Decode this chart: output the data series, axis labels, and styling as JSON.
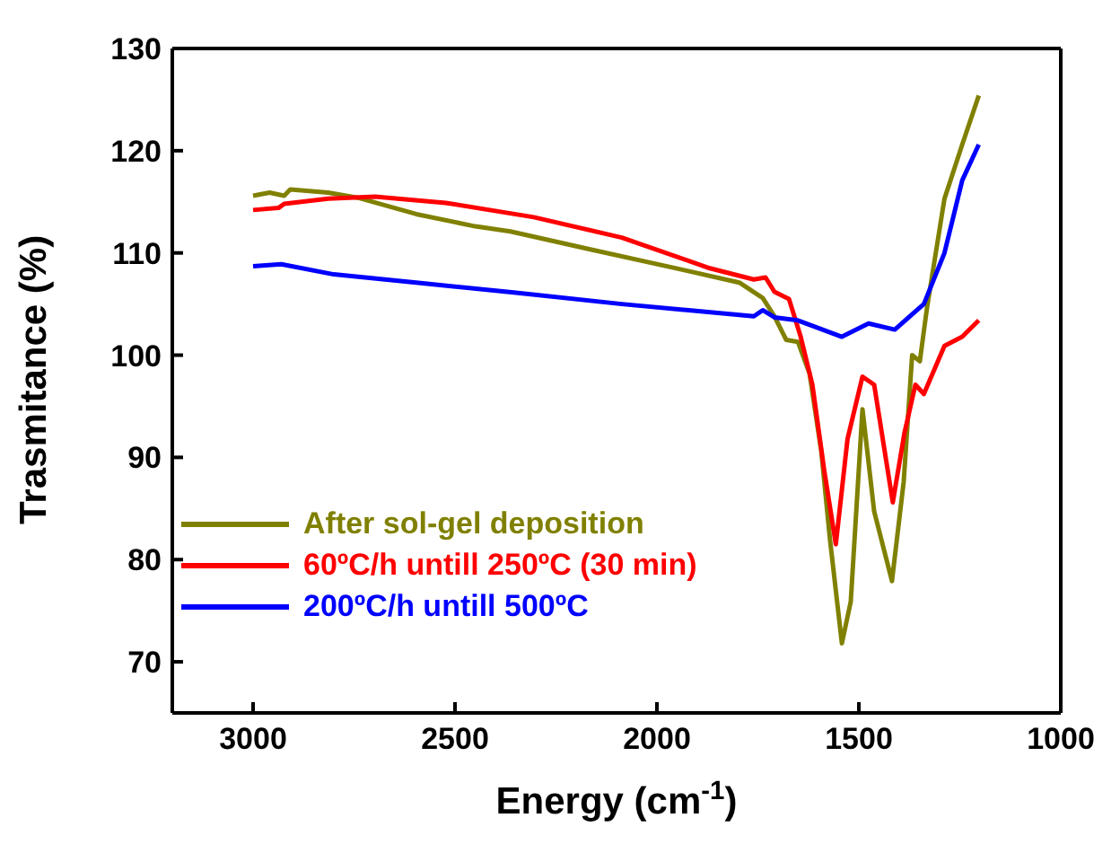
{
  "chart_data": {
    "type": "line",
    "xlabel": "Energy (cm$^{-1}$)",
    "ylabel": "Trasmitance (%)",
    "xlim": [
      3200,
      1000
    ],
    "xticks": [
      3000,
      2500,
      2000,
      1500,
      1000
    ],
    "ylim": [
      65,
      130
    ],
    "yticks": [
      70,
      80,
      90,
      100,
      110,
      120,
      130
    ],
    "grid": false,
    "legend": "bottom left",
    "marker": "none",
    "line_style": "solid",
    "series": [
      {
        "name": "After sol-gel deposition",
        "color": "#808000",
        "x": [
          3000,
          2959,
          2923,
          2908,
          2814,
          2741,
          2596,
          2450,
          2363,
          2160,
          1942,
          1796,
          1738,
          1709,
          1680,
          1651,
          1622,
          1593,
          1571,
          1542,
          1520,
          1491,
          1462,
          1418,
          1389,
          1368,
          1349,
          1331,
          1288,
          1244,
          1203
        ],
        "values": [
          115.6,
          115.9,
          115.6,
          116.2,
          115.9,
          115.4,
          113.8,
          112.6,
          112.1,
          110.3,
          108.4,
          107.1,
          105.6,
          103.8,
          101.5,
          101.3,
          98.2,
          90.6,
          81.8,
          71.8,
          75.9,
          94.7,
          84.7,
          77.9,
          87.6,
          100.0,
          99.4,
          104.7,
          115.3,
          120.6,
          125.4
        ]
      },
      {
        "name": "60ºC/h untill 250ºC (30 min)",
        "color": "#ff0000",
        "x": [
          3000,
          2937,
          2923,
          2814,
          2698,
          2523,
          2305,
          2087,
          1869,
          1760,
          1731,
          1709,
          1673,
          1644,
          1615,
          1586,
          1557,
          1528,
          1491,
          1462,
          1416,
          1387,
          1360,
          1339,
          1288,
          1244,
          1203
        ],
        "values": [
          114.2,
          114.4,
          114.8,
          115.3,
          115.5,
          114.9,
          113.5,
          111.5,
          108.5,
          107.4,
          107.6,
          106.2,
          105.5,
          101.8,
          97.1,
          88.8,
          81.5,
          91.8,
          97.9,
          97.1,
          85.6,
          92.4,
          97.1,
          96.2,
          100.9,
          101.8,
          103.4
        ]
      },
      {
        "name": "200ºC/h untill 500ºC",
        "color": "#0000ff",
        "x": [
          3000,
          2930,
          2800,
          2596,
          2349,
          2087,
          1760,
          1738,
          1709,
          1651,
          1542,
          1476,
          1411,
          1339,
          1288,
          1244,
          1203
        ],
        "values": [
          108.7,
          108.9,
          107.9,
          107.1,
          106.1,
          105.0,
          103.8,
          104.4,
          103.7,
          103.4,
          101.8,
          103.1,
          102.5,
          105.0,
          110.0,
          117.1,
          120.6
        ]
      }
    ]
  }
}
